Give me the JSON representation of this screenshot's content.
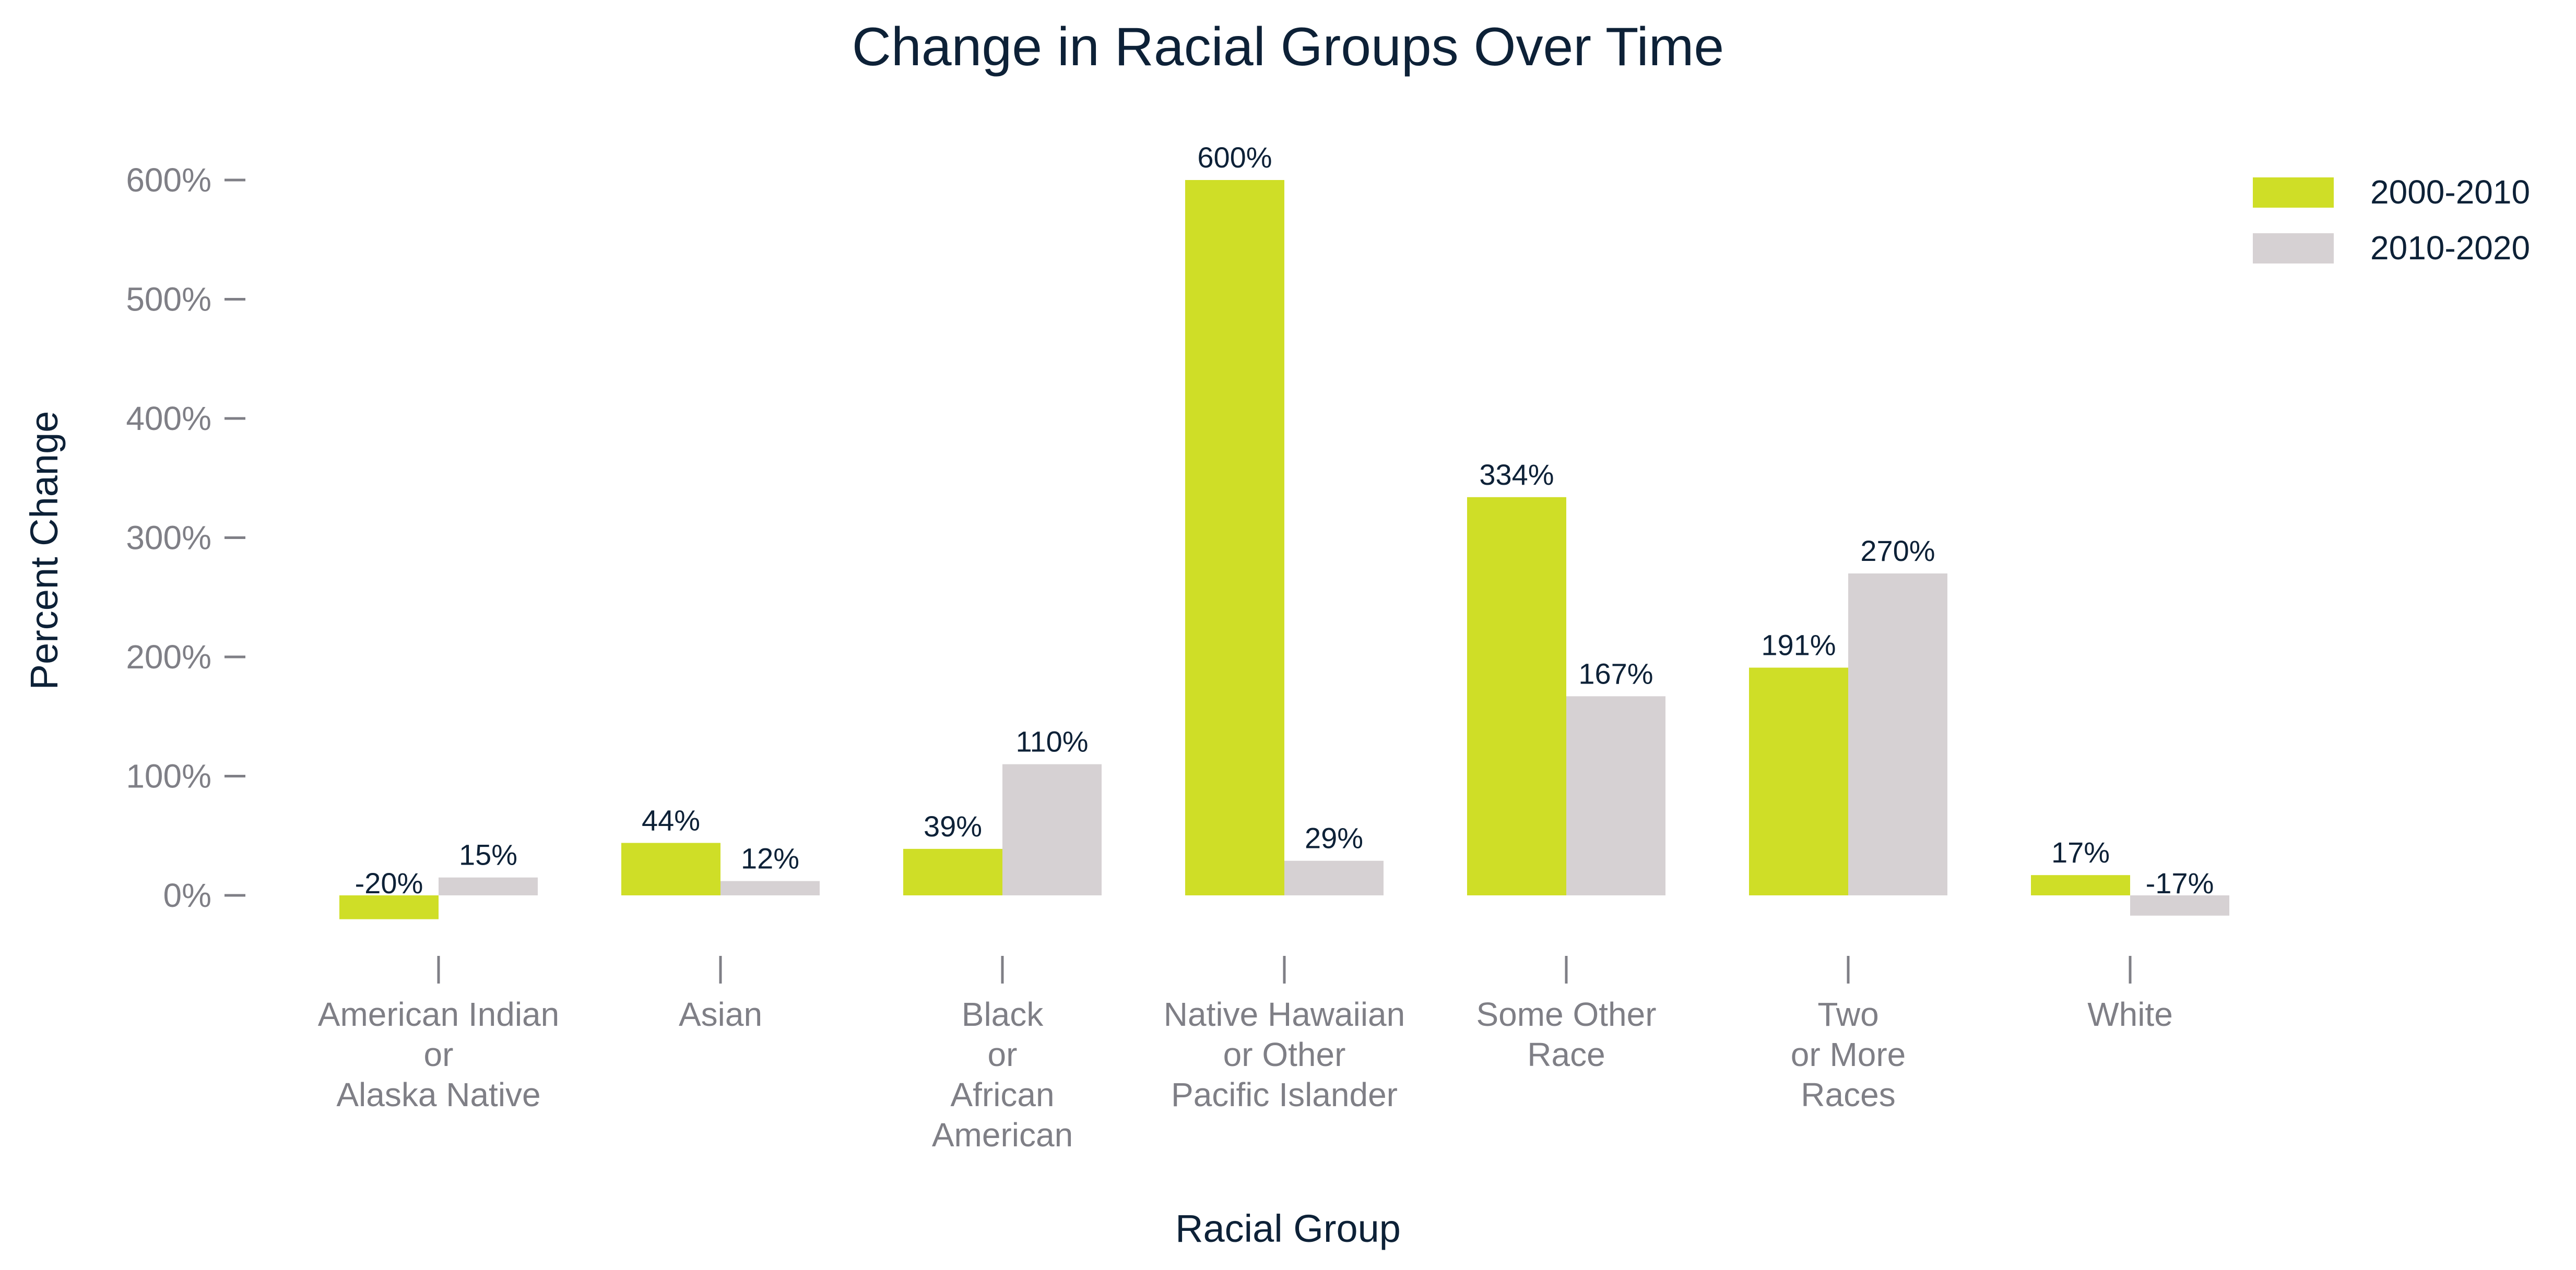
{
  "chart_data": {
    "type": "bar",
    "title": "Change in Racial Groups Over Time",
    "xlabel": "Racial Group",
    "ylabel": "Percent Change",
    "categories": [
      "American Indian or Alaska Native",
      "Asian",
      "Black or African American",
      "Native Hawaiian or Other Pacific Islander",
      "Some Other Race",
      "Two or More Races",
      "White"
    ],
    "category_label_lines": [
      [
        "American Indian",
        "or",
        "Alaska Native"
      ],
      [
        "Asian"
      ],
      [
        "Black",
        "or",
        "African",
        "American"
      ],
      [
        "Native Hawaiian",
        "or Other",
        "Pacific Islander"
      ],
      [
        "Some Other",
        "Race"
      ],
      [
        "Two",
        "or More",
        "Races"
      ],
      [
        "White"
      ]
    ],
    "series": [
      {
        "name": "2000-2010",
        "color": "#cfde27",
        "values": [
          -20,
          44,
          39,
          600,
          334,
          191,
          17
        ],
        "labels": [
          "-20%",
          "44%",
          "39%",
          "600%",
          "334%",
          "191%",
          "17%"
        ]
      },
      {
        "name": "2010-2020",
        "color": "#d6d1d3",
        "values": [
          15,
          12,
          110,
          29,
          167,
          270,
          -17
        ],
        "labels": [
          "15%",
          "12%",
          "110%",
          "29%",
          "167%",
          "270%",
          "-17%"
        ]
      }
    ],
    "y_ticks": [
      0,
      100,
      200,
      300,
      400,
      500,
      600
    ],
    "y_tick_labels": [
      "0%",
      "100%",
      "200%",
      "300%",
      "400%",
      "500%",
      "600%"
    ],
    "ylim": [
      -45,
      630
    ],
    "grid": false,
    "legend_position": "top-right",
    "colors": {
      "title": "#0d2137",
      "axis": "#7f7f86"
    }
  }
}
